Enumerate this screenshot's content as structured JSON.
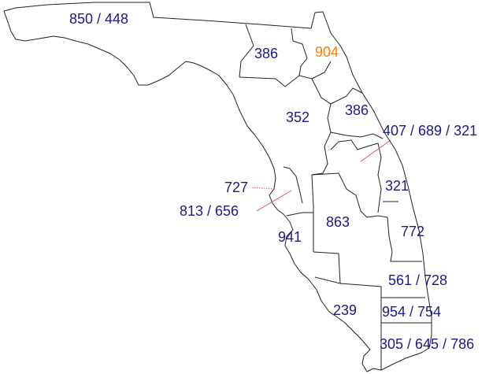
{
  "map": {
    "colors": {
      "label_default": "#1a1a8c",
      "label_highlight": "#ff7f00",
      "outline": "#222222",
      "leader": "#e05050"
    },
    "regions": [
      {
        "id": "r850",
        "label": "850 / 448",
        "highlight": false
      },
      {
        "id": "r386w",
        "label": "386",
        "highlight": false
      },
      {
        "id": "r904",
        "label": "904",
        "highlight": true
      },
      {
        "id": "r352",
        "label": "352",
        "highlight": false
      },
      {
        "id": "r386e",
        "label": "386",
        "highlight": false
      },
      {
        "id": "r407",
        "label": "407 / 689 / 321",
        "highlight": false
      },
      {
        "id": "r727",
        "label": "727",
        "highlight": false
      },
      {
        "id": "r321",
        "label": "321",
        "highlight": false
      },
      {
        "id": "r813",
        "label": "813 / 656",
        "highlight": false
      },
      {
        "id": "r863",
        "label": "863",
        "highlight": false
      },
      {
        "id": "r772",
        "label": "772",
        "highlight": false
      },
      {
        "id": "r941",
        "label": "941",
        "highlight": false
      },
      {
        "id": "r561",
        "label": "561 / 728",
        "highlight": false
      },
      {
        "id": "r239",
        "label": "239",
        "highlight": false
      },
      {
        "id": "r954",
        "label": "954 / 754",
        "highlight": false
      },
      {
        "id": "r305",
        "label": "305 / 645 / 786",
        "highlight": false
      }
    ]
  }
}
